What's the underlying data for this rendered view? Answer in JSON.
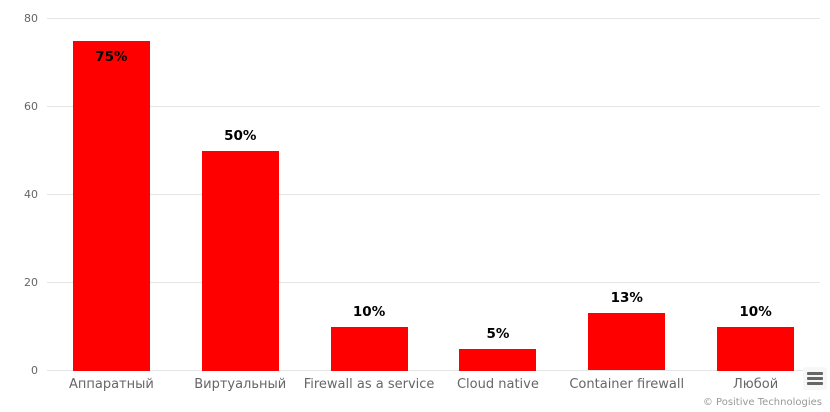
{
  "chart_data": {
    "type": "bar",
    "title": "",
    "xlabel": "",
    "ylabel": "",
    "categories": [
      "Аппаратный",
      "Виртуальный",
      "Firewall as a service",
      "Cloud native",
      "Container firewall",
      "Любой"
    ],
    "values": [
      75,
      50,
      10,
      5,
      13,
      10
    ],
    "data_labels": [
      "75%",
      "50%",
      "10%",
      "5%",
      "13%",
      "10%"
    ],
    "label_inside_bar": [
      true,
      false,
      false,
      false,
      false,
      false
    ],
    "ylim": [
      0,
      80
    ],
    "yticks": [
      0,
      20,
      40,
      60,
      80
    ],
    "grid": true,
    "legend": "none",
    "bar_color": "#ff0000",
    "data_label_color": "#000000",
    "axis_label_color": "#666666",
    "gridline_color": "#e6e6e6"
  },
  "credit": "© Positive Technologies",
  "icons": {
    "menu": "hamburger-menu-icon"
  }
}
